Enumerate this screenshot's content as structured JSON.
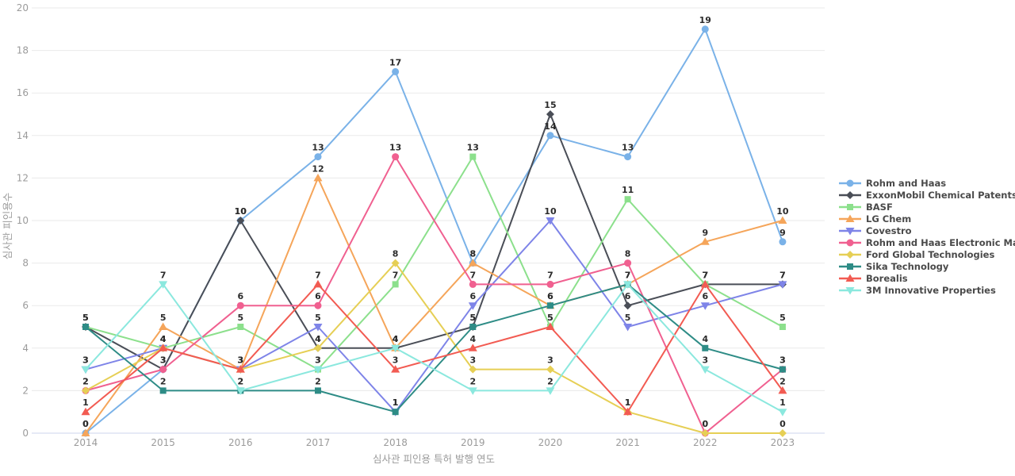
{
  "chart_data": {
    "type": "line",
    "x": [
      2014,
      2015,
      2016,
      2017,
      2018,
      2019,
      2020,
      2021,
      2022,
      2023
    ],
    "series": [
      {
        "name": "Rohm and Haas",
        "color": "#7AB2E8",
        "marker": "circle",
        "values": [
          0,
          3,
          10,
          13,
          17,
          8,
          14,
          13,
          19,
          9
        ]
      },
      {
        "name": "ExxonMobil Chemical Patents",
        "color": "#4A4E57",
        "marker": "diamond",
        "values": [
          5,
          3,
          10,
          4,
          4,
          5,
          15,
          6,
          7,
          7
        ]
      },
      {
        "name": "BASF",
        "color": "#8CE08C",
        "marker": "square",
        "values": [
          5,
          4,
          5,
          3,
          7,
          13,
          5,
          11,
          7,
          5
        ]
      },
      {
        "name": "LG Chem",
        "color": "#F5A55A",
        "marker": "star",
        "values": [
          0,
          5,
          3,
          12,
          4,
          8,
          6,
          7,
          9,
          10
        ]
      },
      {
        "name": "Covestro",
        "color": "#7E84E8",
        "marker": "triangle-down",
        "values": [
          3,
          4,
          3,
          5,
          1,
          6,
          10,
          5,
          6,
          7
        ]
      },
      {
        "name": "Rohm and Haas Electronic Ma...",
        "color": "#F06090",
        "marker": "circle",
        "values": [
          2,
          3,
          6,
          6,
          13,
          7,
          7,
          8,
          0,
          3
        ]
      },
      {
        "name": "Ford Global Technologies",
        "color": "#E6CF55",
        "marker": "diamond",
        "values": [
          2,
          4,
          3,
          4,
          8,
          3,
          3,
          1,
          0,
          0
        ]
      },
      {
        "name": "Sika Technology",
        "color": "#2E8C86",
        "marker": "square",
        "values": [
          5,
          2,
          2,
          2,
          1,
          5,
          6,
          7,
          4,
          3
        ]
      },
      {
        "name": "Borealis",
        "color": "#F25B52",
        "marker": "triangle-up",
        "values": [
          1,
          4,
          3,
          7,
          3,
          4,
          5,
          1,
          7,
          2
        ]
      },
      {
        "name": "3M Innovative Properties",
        "color": "#8BE8DE",
        "marker": "triangle-down",
        "values": [
          3,
          7,
          2,
          3,
          4,
          2,
          2,
          7,
          3,
          1
        ]
      }
    ],
    "xlabel": "심사관 피인용 특허 발행 연도",
    "ylabel": "심사관 피인용수",
    "ylim": [
      0,
      20
    ],
    "yticks": [
      0,
      2,
      4,
      6,
      8,
      10,
      12,
      14,
      16,
      18,
      20
    ],
    "grid": true,
    "legend_position": "right"
  },
  "colors": {
    "gridline": "#eaeaea",
    "baseline": "#ccd4ee",
    "tick_text": "#9b9b9b",
    "label_text": "#2b2b2b",
    "legend_text": "#4a4a4a"
  }
}
